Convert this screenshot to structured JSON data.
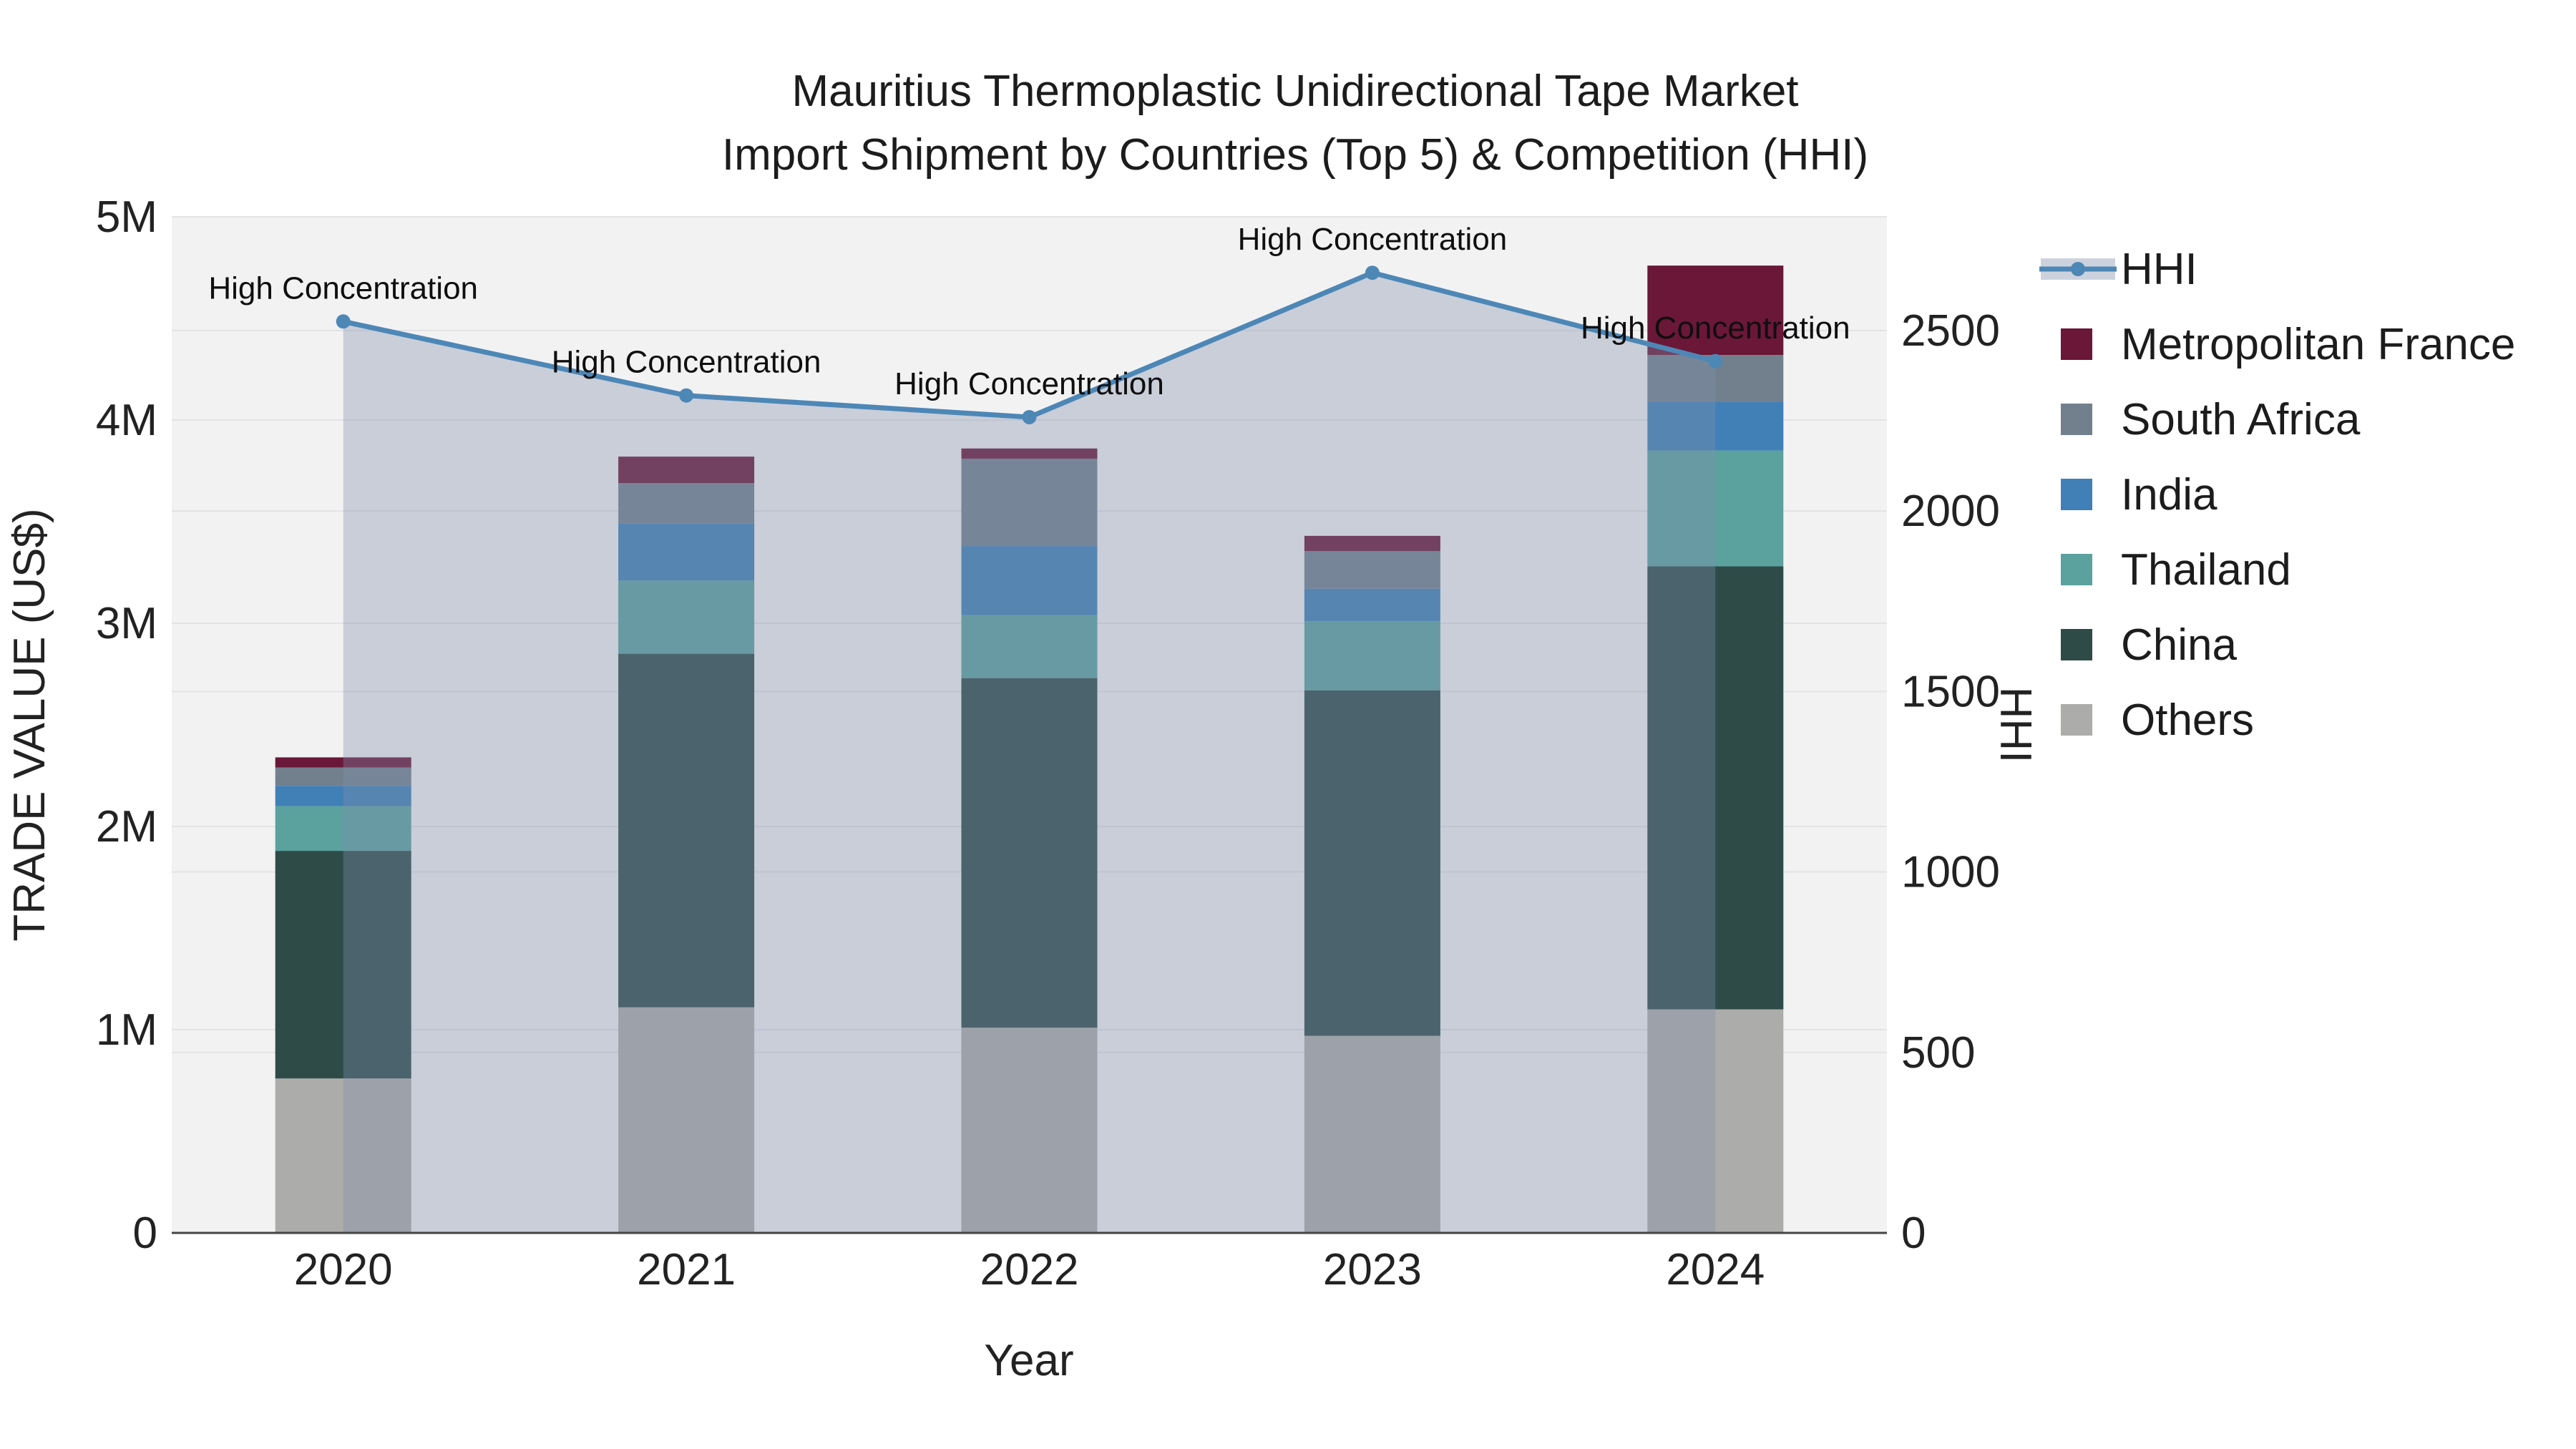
{
  "title": {
    "line1": "Mauritius Thermoplastic Unidirectional Tape Market",
    "line2": "Import Shipment by Countries (Top 5) & Competition (HHI)"
  },
  "chart_data": {
    "type": "combo: stacked-bar + line(area)",
    "categories": [
      "2020",
      "2021",
      "2022",
      "2023",
      "2024"
    ],
    "xlabel": "Year",
    "ylabel_left": "TRADE VALUE (US$)",
    "ylabel_right": "HHI",
    "y_left": {
      "max": 5000000,
      "ticks": [
        {
          "label": "0",
          "value": 0
        },
        {
          "label": "1M",
          "value": 1000000
        },
        {
          "label": "2M",
          "value": 2000000
        },
        {
          "label": "3M",
          "value": 3000000
        },
        {
          "label": "4M",
          "value": 4000000
        },
        {
          "label": "5M",
          "value": 5000000
        }
      ]
    },
    "y_right": {
      "max": 2815,
      "ticks": [
        {
          "label": "0",
          "value": 0
        },
        {
          "label": "500",
          "value": 500
        },
        {
          "label": "1000",
          "value": 1000
        },
        {
          "label": "1500",
          "value": 1500
        },
        {
          "label": "2000",
          "value": 2000
        },
        {
          "label": "2500",
          "value": 2500
        }
      ]
    },
    "bar_series": [
      {
        "name": "Others",
        "color": "#acacaa",
        "values": [
          760000,
          1110000,
          1010000,
          970000,
          1100000
        ]
      },
      {
        "name": "China",
        "color": "#2e4b48",
        "values": [
          1120000,
          1740000,
          1720000,
          1700000,
          2180000
        ]
      },
      {
        "name": "Thailand",
        "color": "#5ba19e",
        "values": [
          220000,
          360000,
          310000,
          340000,
          570000
        ]
      },
      {
        "name": "India",
        "color": "#4180b6",
        "values": [
          100000,
          280000,
          340000,
          160000,
          240000
        ]
      },
      {
        "name": "South Africa",
        "color": "#72808e",
        "values": [
          90000,
          200000,
          430000,
          185000,
          230000
        ]
      },
      {
        "name": "Metropolitan France",
        "color": "#6b1737",
        "values": [
          50000,
          130000,
          50000,
          75000,
          440000
        ]
      }
    ],
    "line_series": {
      "name": "HHI",
      "color": "#4d87b6",
      "fill_color": "rgba(128,140,172,0.36)",
      "values": [
        2525,
        2320,
        2260,
        2660,
        2415
      ]
    },
    "annotations": [
      {
        "text": "High Concentration",
        "category": "2020"
      },
      {
        "text": "High Concentration",
        "category": "2021"
      },
      {
        "text": "High Concentration",
        "category": "2022"
      },
      {
        "text": "High Concentration",
        "category": "2023"
      },
      {
        "text": "High Concentration",
        "category": "2024"
      }
    ],
    "legend": [
      "HHI",
      "Metropolitan France",
      "South Africa",
      "India",
      "Thailand",
      "China",
      "Others"
    ],
    "colors": {
      "plot_background": "#f2f2f3",
      "gridline": "#e3e3e6",
      "axis_line": "#444444",
      "legend_fill_band": "#ccd2dd"
    }
  }
}
